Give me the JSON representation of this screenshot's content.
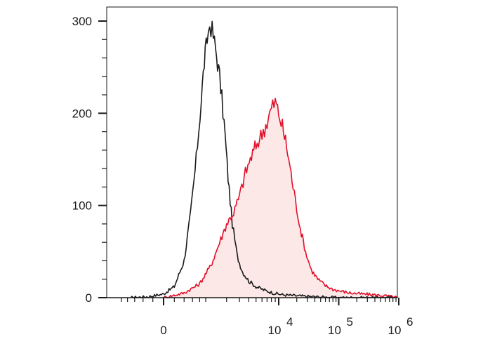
{
  "chart_data": {
    "type": "area",
    "title": "",
    "xlabel": "",
    "ylabel": "",
    "x_scale": "biexponential",
    "ylim": [
      0,
      310
    ],
    "y_ticks": [
      {
        "value": 0,
        "label": "0"
      },
      {
        "value": 100,
        "label": "100"
      },
      {
        "value": 200,
        "label": "200"
      },
      {
        "value": 300,
        "label": "300"
      }
    ],
    "x_ticks": [
      {
        "value": 0,
        "base": "0",
        "exp": ""
      },
      {
        "value": 10000,
        "base": "10",
        "exp": "4"
      },
      {
        "value": 100000,
        "base": "10",
        "exp": "5"
      },
      {
        "value": 1000000,
        "base": "10",
        "exp": "6"
      }
    ],
    "grid": false,
    "legend": "none",
    "series": [
      {
        "color": "#1a1a1a",
        "fill": "none",
        "points": [
          [
            -700,
            0
          ],
          [
            -300,
            1
          ],
          [
            0,
            4
          ],
          [
            200,
            12
          ],
          [
            400,
            40
          ],
          [
            550,
            90
          ],
          [
            700,
            150
          ],
          [
            850,
            215
          ],
          [
            950,
            255
          ],
          [
            1050,
            280
          ],
          [
            1150,
            296
          ],
          [
            1250,
            290
          ],
          [
            1400,
            270
          ],
          [
            1600,
            240
          ],
          [
            1850,
            190
          ],
          [
            2100,
            130
          ],
          [
            2400,
            80
          ],
          [
            2800,
            45
          ],
          [
            3300,
            28
          ],
          [
            4000,
            18
          ],
          [
            5000,
            12
          ],
          [
            6500,
            8
          ],
          [
            8500,
            5
          ],
          [
            12000,
            3
          ],
          [
            20000,
            2
          ],
          [
            40000,
            1
          ],
          [
            100000,
            0
          ],
          [
            1000000,
            0
          ]
        ]
      },
      {
        "color": "#e0102a",
        "fill": "#fde8e8",
        "points": [
          [
            0,
            0
          ],
          [
            400,
            5
          ],
          [
            800,
            15
          ],
          [
            1200,
            35
          ],
          [
            1600,
            60
          ],
          [
            2000,
            80
          ],
          [
            2500,
            92
          ],
          [
            3000,
            110
          ],
          [
            3600,
            135
          ],
          [
            4200,
            150
          ],
          [
            5000,
            165
          ],
          [
            6000,
            178
          ],
          [
            7000,
            190
          ],
          [
            8000,
            205
          ],
          [
            9000,
            212
          ],
          [
            10000,
            200
          ],
          [
            11500,
            185
          ],
          [
            13500,
            165
          ],
          [
            16000,
            135
          ],
          [
            19000,
            105
          ],
          [
            23000,
            75
          ],
          [
            28000,
            50
          ],
          [
            35000,
            30
          ],
          [
            45000,
            20
          ],
          [
            60000,
            13
          ],
          [
            80000,
            9
          ],
          [
            110000,
            7
          ],
          [
            160000,
            5
          ],
          [
            250000,
            4
          ],
          [
            400000,
            3
          ],
          [
            600000,
            2
          ],
          [
            1000000,
            0
          ]
        ]
      }
    ]
  }
}
